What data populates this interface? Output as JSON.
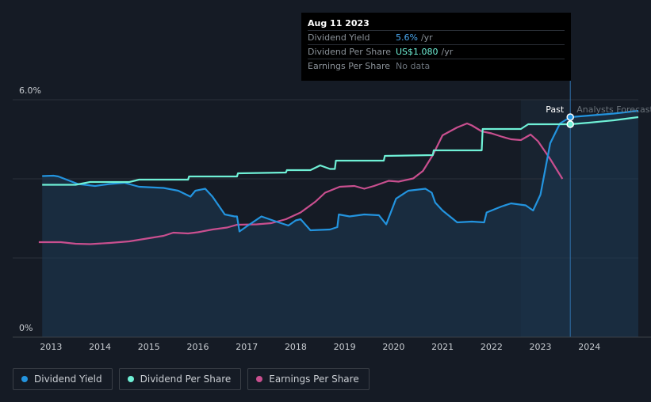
{
  "tooltip": {
    "date": "Aug 11 2023",
    "rows": [
      {
        "label": "Dividend Yield",
        "value": "5.6%",
        "unit": "/yr"
      },
      {
        "label": "Dividend Per Share",
        "value": "US$1.080",
        "unit": "/yr"
      },
      {
        "label": "Earnings Per Share",
        "value": "No data",
        "unit": ""
      }
    ]
  },
  "legend": [
    {
      "label": "Dividend Yield",
      "color": "#2394df"
    },
    {
      "label": "Dividend Per Share",
      "color": "#6ff0d6"
    },
    {
      "label": "Earnings Per Share",
      "color": "#c94f8f"
    }
  ],
  "chart_data": {
    "type": "line",
    "title": "",
    "y_axis_labels": [
      "6.0%",
      "0%"
    ],
    "ylim": [
      0,
      6
    ],
    "xlim": [
      2012.8,
      2025.0
    ],
    "x_ticks": [
      "2013",
      "2014",
      "2015",
      "2016",
      "2017",
      "2018",
      "2019",
      "2020",
      "2021",
      "2022",
      "2023",
      "2024"
    ],
    "past_label": "Past",
    "forecast_label": "Analysts Forecasts",
    "divider_x": 2023.61,
    "forecast_shade_start": 2022.6,
    "series": [
      {
        "name": "Dividend Yield",
        "unit": "%",
        "color": "#2394df",
        "points": [
          [
            2012.82,
            4.07
          ],
          [
            2013.05,
            4.08
          ],
          [
            2013.15,
            4.06
          ],
          [
            2013.55,
            3.87
          ],
          [
            2013.9,
            3.82
          ],
          [
            2014.2,
            3.87
          ],
          [
            2014.5,
            3.9
          ],
          [
            2014.8,
            3.8
          ],
          [
            2015.3,
            3.77
          ],
          [
            2015.6,
            3.7
          ],
          [
            2015.85,
            3.55
          ],
          [
            2015.95,
            3.7
          ],
          [
            2016.15,
            3.75
          ],
          [
            2016.3,
            3.55
          ],
          [
            2016.55,
            3.1
          ],
          [
            2016.75,
            3.05
          ],
          [
            2016.8,
            3.05
          ],
          [
            2016.85,
            2.67
          ],
          [
            2017.0,
            2.8
          ],
          [
            2017.3,
            3.05
          ],
          [
            2017.6,
            2.92
          ],
          [
            2017.85,
            2.82
          ],
          [
            2018.0,
            2.95
          ],
          [
            2018.1,
            2.98
          ],
          [
            2018.3,
            2.7
          ],
          [
            2018.7,
            2.72
          ],
          [
            2018.85,
            2.78
          ],
          [
            2018.88,
            3.1
          ],
          [
            2019.1,
            3.05
          ],
          [
            2019.4,
            3.1
          ],
          [
            2019.7,
            3.08
          ],
          [
            2019.85,
            2.85
          ],
          [
            2020.05,
            3.5
          ],
          [
            2020.3,
            3.7
          ],
          [
            2020.65,
            3.75
          ],
          [
            2020.78,
            3.65
          ],
          [
            2020.85,
            3.4
          ],
          [
            2021.0,
            3.2
          ],
          [
            2021.3,
            2.9
          ],
          [
            2021.6,
            2.92
          ],
          [
            2021.85,
            2.9
          ],
          [
            2021.9,
            3.15
          ],
          [
            2022.2,
            3.3
          ],
          [
            2022.4,
            3.38
          ],
          [
            2022.7,
            3.33
          ],
          [
            2022.85,
            3.2
          ],
          [
            2023.0,
            3.6
          ],
          [
            2023.2,
            4.9
          ],
          [
            2023.4,
            5.4
          ],
          [
            2023.61,
            5.56
          ],
          [
            2024.0,
            5.6
          ],
          [
            2024.5,
            5.65
          ],
          [
            2025.0,
            5.72
          ]
        ]
      },
      {
        "name": "Dividend Per Share",
        "unit": "%",
        "color": "#6ff0d6",
        "points": [
          [
            2012.82,
            3.85
          ],
          [
            2013.5,
            3.85
          ],
          [
            2013.8,
            3.92
          ],
          [
            2014.6,
            3.92
          ],
          [
            2014.8,
            3.98
          ],
          [
            2015.8,
            3.98
          ],
          [
            2015.82,
            4.06
          ],
          [
            2016.8,
            4.06
          ],
          [
            2016.82,
            4.14
          ],
          [
            2017.8,
            4.16
          ],
          [
            2017.82,
            4.22
          ],
          [
            2018.3,
            4.22
          ],
          [
            2018.5,
            4.34
          ],
          [
            2018.7,
            4.25
          ],
          [
            2018.8,
            4.25
          ],
          [
            2018.82,
            4.46
          ],
          [
            2019.8,
            4.46
          ],
          [
            2019.82,
            4.58
          ],
          [
            2020.8,
            4.6
          ],
          [
            2020.82,
            4.72
          ],
          [
            2021.8,
            4.72
          ],
          [
            2021.82,
            5.26
          ],
          [
            2022.6,
            5.26
          ],
          [
            2022.75,
            5.38
          ],
          [
            2023.61,
            5.38
          ],
          [
            2024.0,
            5.42
          ],
          [
            2024.5,
            5.48
          ],
          [
            2025.0,
            5.56
          ]
        ]
      },
      {
        "name": "Earnings Per Share",
        "unit": "%",
        "color": "#c94f8f",
        "points": [
          [
            2012.75,
            2.4
          ],
          [
            2013.2,
            2.4
          ],
          [
            2013.5,
            2.36
          ],
          [
            2013.8,
            2.35
          ],
          [
            2014.2,
            2.38
          ],
          [
            2014.6,
            2.42
          ],
          [
            2015.0,
            2.5
          ],
          [
            2015.3,
            2.56
          ],
          [
            2015.5,
            2.64
          ],
          [
            2015.8,
            2.62
          ],
          [
            2016.0,
            2.65
          ],
          [
            2016.3,
            2.72
          ],
          [
            2016.6,
            2.77
          ],
          [
            2016.8,
            2.84
          ],
          [
            2017.2,
            2.85
          ],
          [
            2017.5,
            2.88
          ],
          [
            2017.8,
            2.98
          ],
          [
            2018.1,
            3.15
          ],
          [
            2018.4,
            3.42
          ],
          [
            2018.6,
            3.65
          ],
          [
            2018.9,
            3.8
          ],
          [
            2019.2,
            3.82
          ],
          [
            2019.4,
            3.75
          ],
          [
            2019.6,
            3.82
          ],
          [
            2019.9,
            3.95
          ],
          [
            2020.1,
            3.93
          ],
          [
            2020.4,
            4.01
          ],
          [
            2020.6,
            4.2
          ],
          [
            2020.8,
            4.6
          ],
          [
            2021.0,
            5.1
          ],
          [
            2021.3,
            5.3
          ],
          [
            2021.5,
            5.4
          ],
          [
            2021.6,
            5.35
          ],
          [
            2021.8,
            5.2
          ],
          [
            2022.0,
            5.15
          ],
          [
            2022.2,
            5.07
          ],
          [
            2022.4,
            5.0
          ],
          [
            2022.6,
            4.98
          ],
          [
            2022.8,
            5.12
          ],
          [
            2022.95,
            4.95
          ],
          [
            2023.2,
            4.5
          ],
          [
            2023.45,
            4.0
          ]
        ]
      }
    ]
  }
}
